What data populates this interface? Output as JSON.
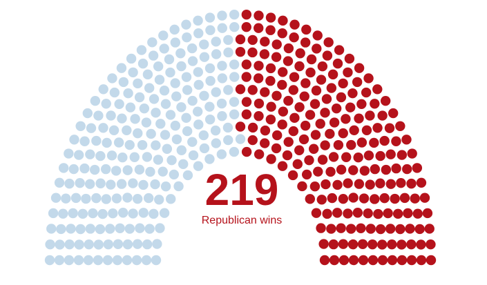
{
  "chart_data": {
    "type": "parliament",
    "categories": [
      "Republican wins",
      null
    ],
    "values": [
      219,
      216
    ],
    "colors": [
      "#b5121b",
      "#c3d9ea"
    ]
  }
}
